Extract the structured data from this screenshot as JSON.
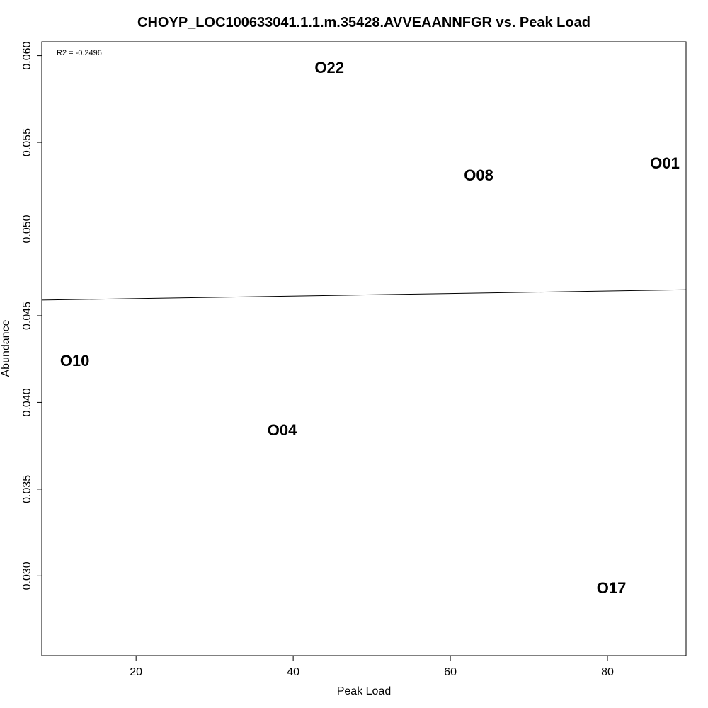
{
  "chart_data": {
    "type": "scatter",
    "title": "CHOYP_LOC100633041.1.1.m.35428.AVVEAANNFGR vs. Peak Load",
    "xlabel": "Peak Load",
    "ylabel": "Abundance",
    "xlim": [
      8,
      90
    ],
    "ylim": [
      0.0254,
      0.0608
    ],
    "xticks": [
      20,
      40,
      60,
      80
    ],
    "yticks": [
      0.03,
      0.035,
      0.04,
      0.045,
      0.05,
      0.055,
      0.06
    ],
    "ytick_labels": [
      "0.030",
      "0.035",
      "0.040",
      "0.045",
      "0.050",
      "0.055",
      "0.060"
    ],
    "points": [
      {
        "label": "O22",
        "x": 44.6,
        "y": 0.0593
      },
      {
        "label": "O01",
        "x": 87.3,
        "y": 0.0538
      },
      {
        "label": "O08",
        "x": 63.6,
        "y": 0.0531
      },
      {
        "label": "O10",
        "x": 12.2,
        "y": 0.0424
      },
      {
        "label": "O04",
        "x": 38.6,
        "y": 0.0384
      },
      {
        "label": "O17",
        "x": 80.5,
        "y": 0.0293
      }
    ],
    "regression_line": {
      "x": [
        8,
        90
      ],
      "y": [
        0.0459,
        0.0465
      ]
    },
    "annotation": "R2 = -0.2496",
    "grid": false,
    "legend": "none"
  }
}
